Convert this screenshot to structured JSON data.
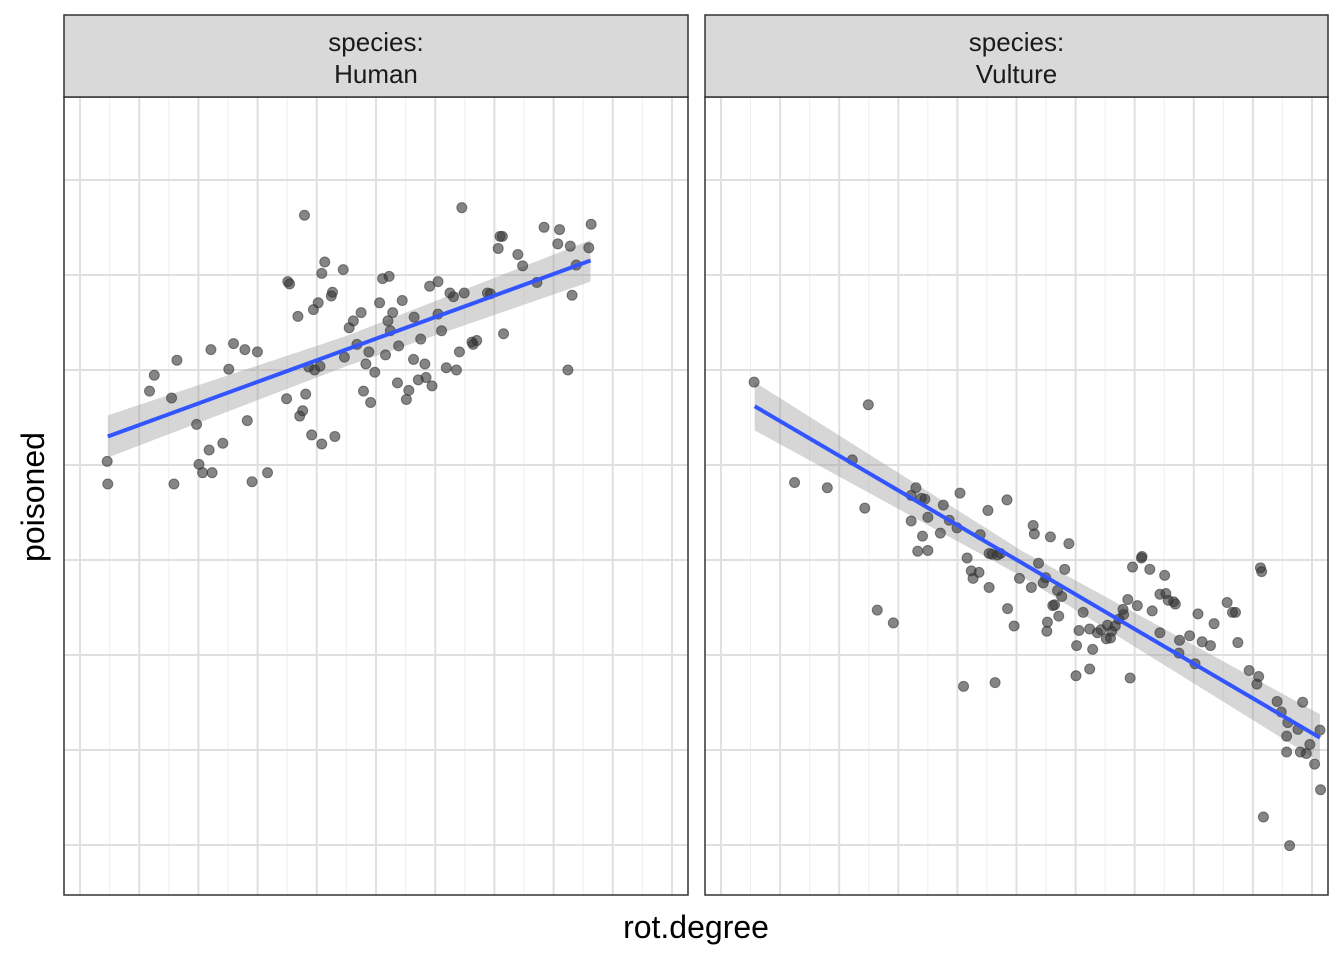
{
  "chart_data": {
    "type": "scatter",
    "xlabel": "rot.degree",
    "ylabel": "poisoned",
    "y_data_range": [
      0,
      100
    ],
    "x_data_range": [
      0,
      100
    ],
    "grid": true,
    "colors": {
      "point": "#333333",
      "trend": "#3355ff",
      "band": "#999999",
      "strip_fill": "#d9d9d9",
      "grid_major": "#e0e0e0",
      "grid_minor": "#efefef",
      "frame": "#333333"
    },
    "panels": [
      {
        "strip_line1": "species:",
        "strip_line2": "Human",
        "trend": {
          "x": [
            5,
            86
          ],
          "y": [
            56.1,
            79.4
          ]
        },
        "band_upper": [
          {
            "x": 5,
            "y": 58.9
          },
          {
            "x": 45,
            "y": 69.4
          },
          {
            "x": 86,
            "y": 82.1
          }
        ],
        "band_lower": [
          {
            "x": 5,
            "y": 53.3
          },
          {
            "x": 45,
            "y": 65.4
          },
          {
            "x": 86,
            "y": 76.6
          }
        ],
        "points": [
          {
            "x": 4.9,
            "y": 52.8
          },
          {
            "x": 5.0,
            "y": 49.8
          },
          {
            "x": 12.0,
            "y": 62.1
          },
          {
            "x": 12.8,
            "y": 64.2
          },
          {
            "x": 15.7,
            "y": 61.2
          },
          {
            "x": 16.6,
            "y": 66.2
          },
          {
            "x": 16.1,
            "y": 49.8
          },
          {
            "x": 19.9,
            "y": 57.7
          },
          {
            "x": 20.3,
            "y": 52.4
          },
          {
            "x": 20.9,
            "y": 51.3
          },
          {
            "x": 22.0,
            "y": 54.3
          },
          {
            "x": 22.5,
            "y": 51.3
          },
          {
            "x": 22.3,
            "y": 67.6
          },
          {
            "x": 24.3,
            "y": 55.2
          },
          {
            "x": 25.3,
            "y": 65.0
          },
          {
            "x": 26.1,
            "y": 68.4
          },
          {
            "x": 28.0,
            "y": 67.6
          },
          {
            "x": 28.4,
            "y": 58.2
          },
          {
            "x": 29.2,
            "y": 50.1
          },
          {
            "x": 30.1,
            "y": 67.3
          },
          {
            "x": 31.8,
            "y": 51.3
          },
          {
            "x": 35.2,
            "y": 76.6
          },
          {
            "x": 35.5,
            "y": 76.3
          },
          {
            "x": 35.0,
            "y": 61.1
          },
          {
            "x": 36.9,
            "y": 72.0
          },
          {
            "x": 37.2,
            "y": 58.8
          },
          {
            "x": 37.7,
            "y": 59.5
          },
          {
            "x": 38.2,
            "y": 61.7
          },
          {
            "x": 38.7,
            "y": 65.3
          },
          {
            "x": 38.0,
            "y": 85.4
          },
          {
            "x": 39.5,
            "y": 72.9
          },
          {
            "x": 40.3,
            "y": 73.8
          },
          {
            "x": 39.2,
            "y": 56.3
          },
          {
            "x": 40.9,
            "y": 55.1
          },
          {
            "x": 40.9,
            "y": 77.7
          },
          {
            "x": 41.4,
            "y": 79.2
          },
          {
            "x": 42.5,
            "y": 74.7
          },
          {
            "x": 43.1,
            "y": 56.1
          },
          {
            "x": 42.7,
            "y": 75.2
          },
          {
            "x": 40.6,
            "y": 65.4
          },
          {
            "x": 39.7,
            "y": 64.9
          },
          {
            "x": 44.5,
            "y": 78.2
          },
          {
            "x": 44.7,
            "y": 66.6
          },
          {
            "x": 45.5,
            "y": 70.5
          },
          {
            "x": 46.2,
            "y": 71.4
          },
          {
            "x": 46.8,
            "y": 68.3
          },
          {
            "x": 47.5,
            "y": 72.5
          },
          {
            "x": 47.9,
            "y": 62.1
          },
          {
            "x": 48.3,
            "y": 65.7
          },
          {
            "x": 49.1,
            "y": 60.6
          },
          {
            "x": 48.8,
            "y": 67.3
          },
          {
            "x": 49.8,
            "y": 64.6
          },
          {
            "x": 50.6,
            "y": 73.8
          },
          {
            "x": 51.1,
            "y": 77.0
          },
          {
            "x": 51.6,
            "y": 66.9
          },
          {
            "x": 52.8,
            "y": 72.5
          },
          {
            "x": 52.0,
            "y": 71.4
          },
          {
            "x": 52.4,
            "y": 70.1
          },
          {
            "x": 52.2,
            "y": 77.3
          },
          {
            "x": 53.6,
            "y": 63.2
          },
          {
            "x": 53.8,
            "y": 68.1
          },
          {
            "x": 54.4,
            "y": 74.1
          },
          {
            "x": 55.1,
            "y": 61.0
          },
          {
            "x": 55.5,
            "y": 62.2
          },
          {
            "x": 56.3,
            "y": 66.3
          },
          {
            "x": 56.4,
            "y": 71.9
          },
          {
            "x": 57.1,
            "y": 63.6
          },
          {
            "x": 57.5,
            "y": 69.0
          },
          {
            "x": 58.4,
            "y": 63.9
          },
          {
            "x": 58.2,
            "y": 65.7
          },
          {
            "x": 59.0,
            "y": 76.0
          },
          {
            "x": 59.4,
            "y": 62.8
          },
          {
            "x": 60.4,
            "y": 72.3
          },
          {
            "x": 60.4,
            "y": 76.6
          },
          {
            "x": 61.0,
            "y": 70.1
          },
          {
            "x": 61.8,
            "y": 65.2
          },
          {
            "x": 62.4,
            "y": 75.1
          },
          {
            "x": 63.0,
            "y": 74.6
          },
          {
            "x": 63.5,
            "y": 64.9
          },
          {
            "x": 64.0,
            "y": 67.3
          },
          {
            "x": 64.4,
            "y": 86.4
          },
          {
            "x": 64.8,
            "y": 75.1
          },
          {
            "x": 66.1,
            "y": 68.6
          },
          {
            "x": 66.3,
            "y": 68.3
          },
          {
            "x": 66.9,
            "y": 68.8
          },
          {
            "x": 68.7,
            "y": 75.1
          },
          {
            "x": 69.2,
            "y": 75.0
          },
          {
            "x": 70.5,
            "y": 81.0
          },
          {
            "x": 71.2,
            "y": 82.6
          },
          {
            "x": 70.8,
            "y": 82.6
          },
          {
            "x": 71.4,
            "y": 69.7
          },
          {
            "x": 73.8,
            "y": 80.2
          },
          {
            "x": 74.6,
            "y": 78.7
          },
          {
            "x": 77.0,
            "y": 76.5
          },
          {
            "x": 78.2,
            "y": 83.8
          },
          {
            "x": 80.5,
            "y": 81.6
          },
          {
            "x": 80.8,
            "y": 83.5
          },
          {
            "x": 82.6,
            "y": 81.3
          },
          {
            "x": 82.2,
            "y": 64.9
          },
          {
            "x": 82.9,
            "y": 74.8
          },
          {
            "x": 83.6,
            "y": 78.8
          },
          {
            "x": 85.7,
            "y": 81.1
          },
          {
            "x": 86.1,
            "y": 84.2
          }
        ]
      },
      {
        "strip_line1": "species:",
        "strip_line2": "Vulture",
        "trend": {
          "x": [
            6,
            101
          ],
          "y": [
            60.1,
            16.2
          ]
        },
        "band_upper": [
          {
            "x": 6,
            "y": 63.3
          },
          {
            "x": 51,
            "y": 40.9
          },
          {
            "x": 101,
            "y": 19.3
          }
        ],
        "band_lower": [
          {
            "x": 6,
            "y": 56.9
          },
          {
            "x": 51,
            "y": 37.5
          },
          {
            "x": 101,
            "y": 13.0
          }
        ],
        "points": [
          {
            "x": 5.9,
            "y": 63.3
          },
          {
            "x": 12.7,
            "y": 50.0
          },
          {
            "x": 18.2,
            "y": 49.3
          },
          {
            "x": 22.4,
            "y": 53.0
          },
          {
            "x": 24.5,
            "y": 46.6
          },
          {
            "x": 25.1,
            "y": 60.3
          },
          {
            "x": 26.6,
            "y": 33.1
          },
          {
            "x": 29.3,
            "y": 31.4
          },
          {
            "x": 32.3,
            "y": 44.9
          },
          {
            "x": 32.3,
            "y": 48.3
          },
          {
            "x": 33.4,
            "y": 40.9
          },
          {
            "x": 33.1,
            "y": 49.3
          },
          {
            "x": 34.0,
            "y": 47.9
          },
          {
            "x": 34.6,
            "y": 47.8
          },
          {
            "x": 35.1,
            "y": 45.4
          },
          {
            "x": 35.1,
            "y": 41.0
          },
          {
            "x": 34.2,
            "y": 42.9
          },
          {
            "x": 37.2,
            "y": 43.3
          },
          {
            "x": 37.7,
            "y": 47.0
          },
          {
            "x": 38.7,
            "y": 45.0
          },
          {
            "x": 40.0,
            "y": 44.0
          },
          {
            "x": 40.5,
            "y": 48.6
          },
          {
            "x": 41.1,
            "y": 23.0
          },
          {
            "x": 41.7,
            "y": 40.0
          },
          {
            "x": 42.7,
            "y": 37.3
          },
          {
            "x": 42.4,
            "y": 38.3
          },
          {
            "x": 43.7,
            "y": 38.1
          },
          {
            "x": 43.9,
            "y": 43.1
          },
          {
            "x": 45.4,
            "y": 40.6
          },
          {
            "x": 45.2,
            "y": 46.3
          },
          {
            "x": 45.4,
            "y": 36.1
          },
          {
            "x": 45.9,
            "y": 40.5
          },
          {
            "x": 46.4,
            "y": 23.5
          },
          {
            "x": 46.8,
            "y": 40.4
          },
          {
            "x": 47.3,
            "y": 40.6
          },
          {
            "x": 48.4,
            "y": 47.7
          },
          {
            "x": 48.5,
            "y": 33.3
          },
          {
            "x": 49.6,
            "y": 31.0
          },
          {
            "x": 50.5,
            "y": 37.3
          },
          {
            "x": 52.5,
            "y": 36.1
          },
          {
            "x": 52.8,
            "y": 44.3
          },
          {
            "x": 53.0,
            "y": 43.2
          },
          {
            "x": 53.7,
            "y": 39.3
          },
          {
            "x": 54.5,
            "y": 36.7
          },
          {
            "x": 54.9,
            "y": 37.4
          },
          {
            "x": 55.2,
            "y": 31.5
          },
          {
            "x": 55.1,
            "y": 30.3
          },
          {
            "x": 55.7,
            "y": 42.8
          },
          {
            "x": 56.9,
            "y": 35.7
          },
          {
            "x": 57.1,
            "y": 32.3
          },
          {
            "x": 57.6,
            "y": 34.9
          },
          {
            "x": 58.1,
            "y": 38.5
          },
          {
            "x": 58.8,
            "y": 41.9
          },
          {
            "x": 60.0,
            "y": 24.4
          },
          {
            "x": 60.1,
            "y": 28.4
          },
          {
            "x": 60.5,
            "y": 30.4
          },
          {
            "x": 61.2,
            "y": 32.8
          },
          {
            "x": 62.3,
            "y": 30.6
          },
          {
            "x": 62.3,
            "y": 25.3
          },
          {
            "x": 62.8,
            "y": 27.9
          },
          {
            "x": 63.6,
            "y": 30.1
          },
          {
            "x": 64.2,
            "y": 30.5
          },
          {
            "x": 65.1,
            "y": 29.3
          },
          {
            "x": 65.3,
            "y": 31.1
          },
          {
            "x": 65.8,
            "y": 29.4
          },
          {
            "x": 66.0,
            "y": 30.3
          },
          {
            "x": 66.6,
            "y": 31.0
          },
          {
            "x": 67.2,
            "y": 31.9
          },
          {
            "x": 67.9,
            "y": 33.2
          },
          {
            "x": 68.0,
            "y": 32.5
          },
          {
            "x": 68.7,
            "y": 34.5
          },
          {
            "x": 69.1,
            "y": 24.1
          },
          {
            "x": 69.5,
            "y": 38.8
          },
          {
            "x": 70.3,
            "y": 33.7
          },
          {
            "x": 71.1,
            "y": 40.2
          },
          {
            "x": 71.0,
            "y": 40.0
          },
          {
            "x": 72.4,
            "y": 38.5
          },
          {
            "x": 72.8,
            "y": 33.0
          },
          {
            "x": 74.1,
            "y": 30.1
          },
          {
            "x": 74.1,
            "y": 35.2
          },
          {
            "x": 74.9,
            "y": 37.7
          },
          {
            "x": 75.1,
            "y": 35.3
          },
          {
            "x": 75.5,
            "y": 34.4
          },
          {
            "x": 76.4,
            "y": 34.2
          },
          {
            "x": 76.7,
            "y": 33.9
          },
          {
            "x": 77.3,
            "y": 27.4
          },
          {
            "x": 77.4,
            "y": 29.1
          },
          {
            "x": 79.1,
            "y": 29.7
          },
          {
            "x": 80.0,
            "y": 26.0
          },
          {
            "x": 80.5,
            "y": 32.6
          },
          {
            "x": 81.2,
            "y": 28.9
          },
          {
            "x": 82.6,
            "y": 28.4
          },
          {
            "x": 83.2,
            "y": 31.3
          },
          {
            "x": 85.4,
            "y": 34.1
          },
          {
            "x": 86.3,
            "y": 32.8
          },
          {
            "x": 86.8,
            "y": 32.8
          },
          {
            "x": 87.2,
            "y": 28.8
          },
          {
            "x": 89.1,
            "y": 25.1
          },
          {
            "x": 90.4,
            "y": 23.3
          },
          {
            "x": 90.7,
            "y": 24.3
          },
          {
            "x": 93.8,
            "y": 21.0
          },
          {
            "x": 94.5,
            "y": 19.6
          },
          {
            "x": 95.6,
            "y": 18.2
          },
          {
            "x": 95.4,
            "y": 16.4
          },
          {
            "x": 97.7,
            "y": 14.3
          },
          {
            "x": 97.3,
            "y": 17.3
          },
          {
            "x": 98.1,
            "y": 20.9
          },
          {
            "x": 98.7,
            "y": 14.1
          },
          {
            "x": 99.3,
            "y": 15.3
          },
          {
            "x": 100.1,
            "y": 12.7
          },
          {
            "x": 101.0,
            "y": 17.2
          },
          {
            "x": 91.2,
            "y": 38.2
          },
          {
            "x": 91.0,
            "y": 38.7
          },
          {
            "x": 56.1,
            "y": 33.7
          },
          {
            "x": 56.4,
            "y": 33.8
          },
          {
            "x": 95.4,
            "y": 14.3
          },
          {
            "x": 101.1,
            "y": 9.3
          },
          {
            "x": 91.5,
            "y": 5.7
          },
          {
            "x": 95.9,
            "y": 1.9
          }
        ]
      }
    ]
  }
}
